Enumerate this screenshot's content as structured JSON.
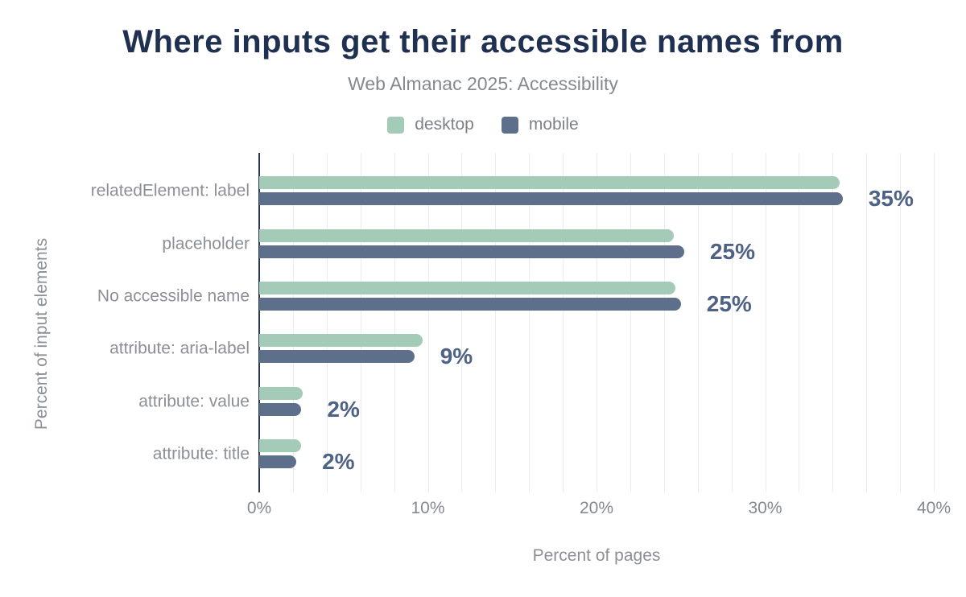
{
  "chart_data": {
    "type": "bar",
    "orientation": "horizontal",
    "title": "Where inputs get their accessible names from",
    "subtitle": "Web Almanac 2025: Accessibility",
    "xlabel": "Percent of pages",
    "ylabel": "Percent of input elements",
    "categories": [
      "relatedElement: label",
      "placeholder",
      "No accessible name",
      "attribute: aria-label",
      "attribute: value",
      "attribute: title"
    ],
    "series": [
      {
        "name": "desktop",
        "color": "#a4cab8",
        "values": [
          34.4,
          24.6,
          24.7,
          9.7,
          2.6,
          2.5
        ]
      },
      {
        "name": "mobile",
        "color": "#5d6f8b",
        "values": [
          34.6,
          25.2,
          25.0,
          9.2,
          2.5,
          2.2
        ]
      }
    ],
    "value_labels": [
      "35%",
      "25%",
      "25%",
      "9%",
      "2%",
      "2%"
    ],
    "xlim": [
      0,
      40
    ],
    "xticks": {
      "values": [
        0,
        10,
        20,
        30,
        40
      ],
      "labels": [
        "0%",
        "10%",
        "20%",
        "30%",
        "40%"
      ]
    },
    "grid": {
      "show": true,
      "interval_percent": 2,
      "color": "#ededed"
    },
    "legend_position": "top-center",
    "colors": {
      "title": "#1f3050",
      "subtitle": "#85898d",
      "axis_line": "#2a3a56",
      "category_labels": "#8b9096",
      "value_labels": "#4e6285",
      "background": "#ffffff"
    }
  }
}
